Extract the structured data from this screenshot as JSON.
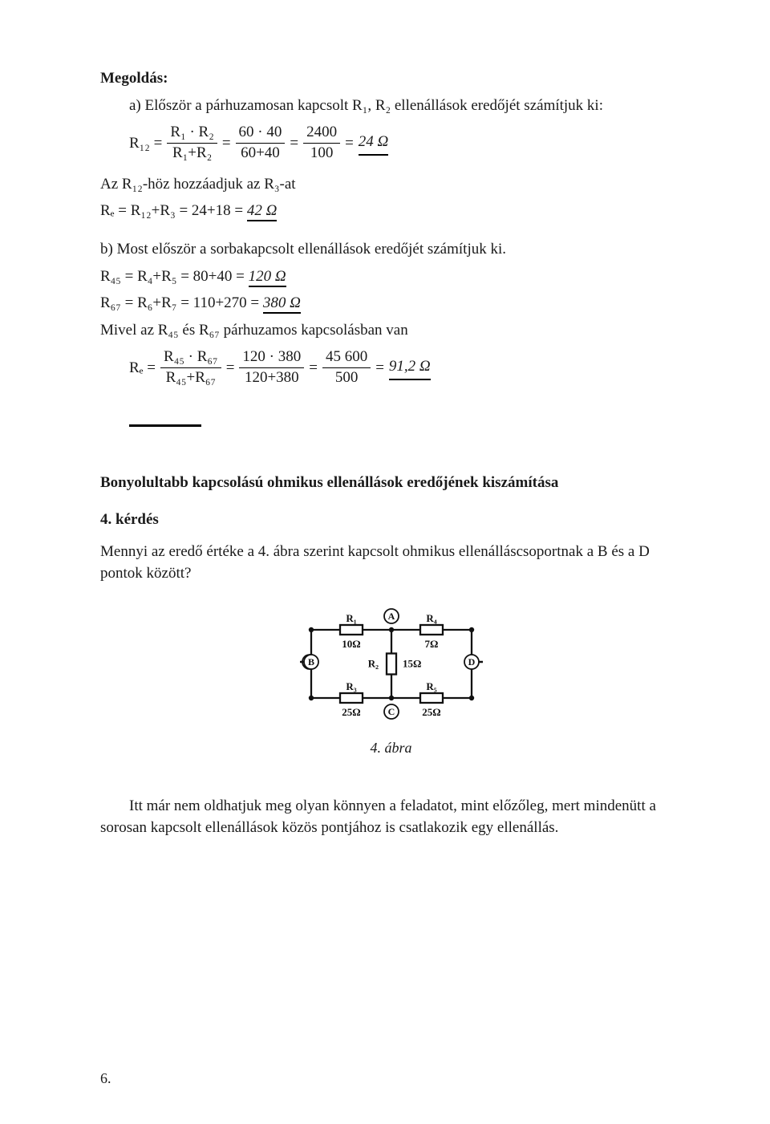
{
  "header": {
    "title": "Megoldás:",
    "intro_a": "a) Először a párhuzamosan kapcsolt R₁, R₂ ellenállások eredőjét számítjuk ki:"
  },
  "eq1": {
    "lhs": "R₁₂ =",
    "num1": "R₁ · R₂",
    "den1": "R₁+R₂",
    "eq": "=",
    "num2": "60 · 40",
    "den2": "60+40",
    "num3": "2400",
    "den3": "100",
    "result": "24 Ω"
  },
  "line_add12": {
    "t1": "Az R₁₂-höz hozzáadjuk az R₃-at",
    "t2": "Rₑ = R₁₂+R₃ = 24+18 =",
    "res": "42 Ω"
  },
  "part_b_intro": "b) Most először a sorbakapcsolt ellenállások eredőjét számítjuk ki.",
  "line_r45": {
    "t": "R₄₅ = R₄+R₅ = 80+40 =",
    "res": "120 Ω"
  },
  "line_r67": {
    "t": "R₆₇ = R₆+R₇ = 110+270 =",
    "res": "380 Ω"
  },
  "line_mivel": "Mivel az R₄₅ és R₆₇ párhuzamos kapcsolásban van",
  "eq2": {
    "lhs": "Rₑ =",
    "num1": "R₄₅ · R₆₇",
    "den1": "R₄₅+R₆₇",
    "eq": "=",
    "num2": "120 · 380",
    "den2": "120+380",
    "num3": "45 600",
    "den3": "500",
    "result": "91,2 Ω"
  },
  "section2": {
    "heading": "Bonyolultabb kapcsolású ohmikus ellenállások eredőjének kiszámítása",
    "k": "4. kérdés",
    "q": "Mennyi az eredő értéke a 4. ábra szerint kapcsolt ohmikus ellenálláscsoportnak a B és a D pontok között?"
  },
  "figure": {
    "caption": "4. ábra",
    "labels": {
      "A": "A",
      "B": "B",
      "C": "C",
      "D": "D",
      "R1": "R₁",
      "R2": "R₂",
      "R3": "R₃",
      "R4": "R₄",
      "R5": "R₅",
      "v1": "10Ω",
      "v2": "15Ω",
      "v3": "25Ω",
      "v4": "7Ω",
      "v5": "25Ω"
    },
    "style": {
      "stroke": "#111111",
      "stroke_width": 2.3,
      "font_family": "Times New Roman, serif",
      "label_fontsize": 13,
      "node_fontsize": 12,
      "node_radius": 9
    }
  },
  "closing": "Itt már nem oldhatjuk meg olyan könnyen a feladatot, mint előzőleg, mert mindenütt a sorosan kapcsolt ellenállások közös pontjához is csatlakozik egy ellenállás.",
  "page_number": "6."
}
